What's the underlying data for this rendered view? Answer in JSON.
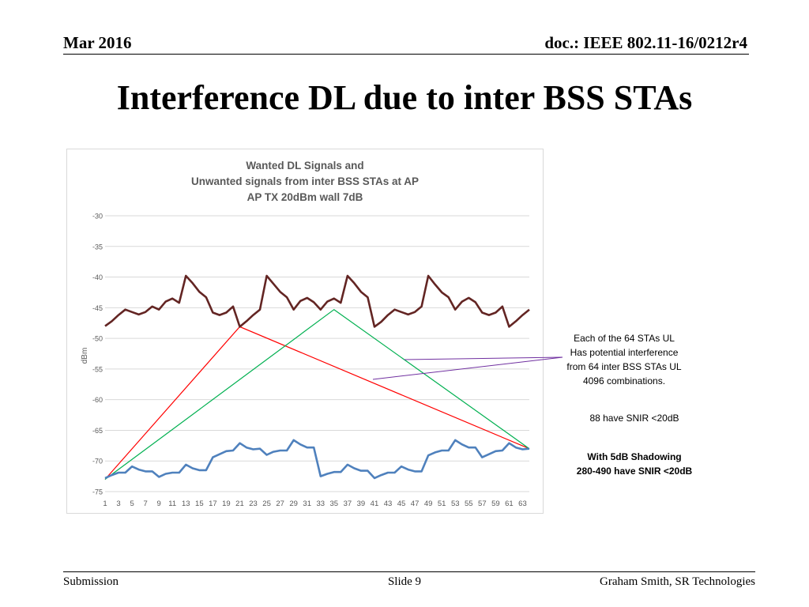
{
  "header": {
    "date": "Mar 2016",
    "doc": "doc.: IEEE 802.11-16/0212r4"
  },
  "title": "Interference DL due to inter BSS STAs",
  "footer": {
    "left": "Submission",
    "center": "Slide 9",
    "right": "Graham Smith, SR Technologies"
  },
  "annotations": {
    "callout_lines": [
      "Each of the 64 STAs UL",
      "Has potential interference",
      "from 64 inter BSS STAs UL",
      "4096 combinations."
    ],
    "snir_note": "88 have SNIR <20dB",
    "shadow_lines": [
      "With 5dB Shadowing",
      "280-490  have SNIR <20dB"
    ]
  },
  "chart_data": {
    "type": "line",
    "title_lines": [
      "Wanted DL Signals and",
      "Unwanted signals from inter BSS STAs at AP",
      "AP TX 20dBm wall 7dB"
    ],
    "ylabel": "dBm",
    "xlabel": "",
    "ylim": [
      -75,
      -30
    ],
    "yticks": [
      -30,
      -35,
      -40,
      -45,
      -50,
      -55,
      -60,
      -65,
      -70,
      -75
    ],
    "x_tick_labels": [
      "1",
      "3",
      "5",
      "7",
      "9",
      "11",
      "13",
      "15",
      "17",
      "19",
      "21",
      "23",
      "25",
      "27",
      "29",
      "31",
      "33",
      "35",
      "37",
      "39",
      "41",
      "43",
      "45",
      "47",
      "49",
      "51",
      "53",
      "55",
      "57",
      "59",
      "61",
      "63"
    ],
    "grid": true,
    "legend": "none",
    "series": [
      {
        "color": "#632523",
        "x": [
          1,
          2,
          3,
          4,
          5,
          6,
          7,
          8,
          9,
          10,
          11,
          12,
          13,
          14,
          15,
          16,
          17,
          18,
          19,
          20,
          21,
          22,
          23,
          24,
          25,
          26,
          27,
          28,
          29,
          30,
          31,
          32,
          33,
          34,
          35,
          36,
          37,
          38,
          39,
          40,
          41,
          42,
          43,
          44,
          45,
          46,
          47,
          48,
          49,
          50,
          51,
          52,
          53,
          54,
          55,
          56,
          57,
          58,
          59,
          60,
          61,
          62,
          63,
          64
        ],
        "values": [
          -48,
          -47.2,
          -46.2,
          -45.3,
          -45.7,
          -46.1,
          -45.7,
          -44.8,
          -45.3,
          -44,
          -43.5,
          -44.2,
          -39.8,
          -41,
          -42.4,
          -43.3,
          -45.8,
          -46.2,
          -45.8,
          -44.8,
          -48.1,
          -47.2,
          -46.2,
          -45.3,
          -39.8,
          -41.1,
          -42.4,
          -43.3,
          -45.3,
          -43.9,
          -43.4,
          -44.1,
          -45.3,
          -44,
          -43.5,
          -44.2,
          -39.8,
          -41,
          -42.4,
          -43.3,
          -48.1,
          -47.3,
          -46.2,
          -45.3,
          -45.7,
          -46.1,
          -45.7,
          -44.8,
          -39.8,
          -41.2,
          -42.5,
          -43.3,
          -45.3,
          -44,
          -43.4,
          -44.1,
          -45.8,
          -46.2,
          -45.8,
          -44.8,
          -48.1,
          -47.2,
          -46.2,
          -45.3
        ]
      },
      {
        "color": "#4f81bd",
        "x": [
          1,
          2,
          3,
          4,
          5,
          6,
          7,
          8,
          9,
          10,
          11,
          12,
          13,
          14,
          15,
          16,
          17,
          18,
          19,
          20,
          21,
          22,
          23,
          24,
          25,
          26,
          27,
          28,
          29,
          30,
          31,
          32,
          33,
          34,
          35,
          36,
          37,
          38,
          39,
          40,
          41,
          42,
          43,
          44,
          45,
          46,
          47,
          48,
          49,
          50,
          51,
          52,
          53,
          54,
          55,
          56,
          57,
          58,
          59,
          60,
          61,
          62,
          63,
          64
        ],
        "values": [
          -72.8,
          -72.3,
          -71.9,
          -71.9,
          -70.9,
          -71.4,
          -71.7,
          -71.7,
          -72.6,
          -72.1,
          -71.9,
          -71.9,
          -70.6,
          -71.2,
          -71.5,
          -71.5,
          -69.4,
          -68.9,
          -68.4,
          -68.3,
          -67.1,
          -67.8,
          -68.1,
          -68,
          -69,
          -68.5,
          -68.3,
          -68.3,
          -66.6,
          -67.3,
          -67.8,
          -67.8,
          -72.5,
          -72.1,
          -71.8,
          -71.8,
          -70.6,
          -71.2,
          -71.6,
          -71.6,
          -72.8,
          -72.3,
          -71.9,
          -71.9,
          -70.9,
          -71.4,
          -71.7,
          -71.7,
          -69.1,
          -68.6,
          -68.3,
          -68.3,
          -66.6,
          -67.3,
          -67.8,
          -67.8,
          -69.4,
          -68.9,
          -68.4,
          -68.3,
          -67.1,
          -67.8,
          -68.1,
          -68
        ]
      }
    ],
    "overlays": [
      {
        "color": "#ff0000",
        "points": [
          [
            1,
            -73
          ],
          [
            21,
            -48.1
          ],
          [
            64,
            -68
          ]
        ]
      },
      {
        "color": "#00b050",
        "points": [
          [
            1,
            -73
          ],
          [
            35,
            -45.3
          ],
          [
            64,
            -68
          ]
        ]
      }
    ]
  }
}
